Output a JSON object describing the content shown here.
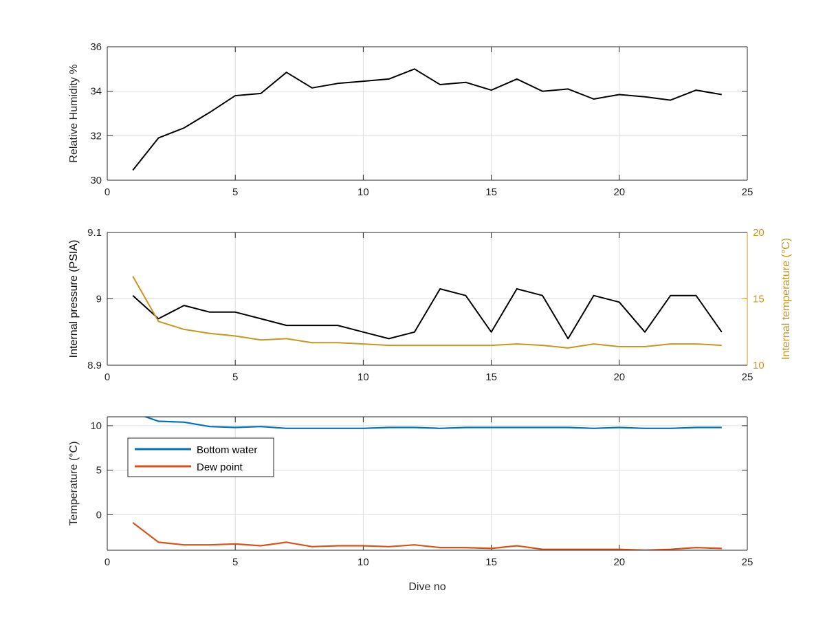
{
  "chart_data": [
    {
      "type": "line",
      "xlabel": "",
      "ylabel": "Relative Humidity %",
      "xlim": [
        0,
        25
      ],
      "ylim": [
        30,
        36
      ],
      "xticks": [
        "0",
        "5",
        "10",
        "15",
        "20",
        "25"
      ],
      "yticks": [
        "30",
        "32",
        "34",
        "36"
      ],
      "grid": true,
      "series": [
        {
          "color": "#000000",
          "x": [
            1,
            2,
            3,
            4,
            5,
            6,
            7,
            8,
            9,
            10,
            11,
            12,
            13,
            14,
            15,
            16,
            17,
            18,
            19,
            20,
            21,
            22,
            23,
            24
          ],
          "y": [
            30.45,
            31.9,
            32.35,
            33.05,
            33.8,
            33.9,
            34.85,
            34.15,
            34.35,
            34.45,
            34.55,
            35.0,
            34.3,
            34.4,
            34.05,
            34.55,
            34.0,
            34.1,
            33.65,
            33.85,
            33.75,
            33.6,
            34.05,
            33.85
          ]
        }
      ]
    },
    {
      "type": "line",
      "xlabel": "",
      "ylabel": "Internal pressure (PSIA)",
      "ylabel_right": "Internal temperature (°C)",
      "xlim": [
        0,
        25
      ],
      "ylim": [
        8.9,
        9.1
      ],
      "ylim_right": [
        10,
        20
      ],
      "xticks": [
        "0",
        "5",
        "10",
        "15",
        "20",
        "25"
      ],
      "yticks": [
        "8.9",
        "9",
        "9.1"
      ],
      "yticks_right": [
        "10",
        "15",
        "20"
      ],
      "grid": true,
      "right_axis_color": "#c8961e",
      "series": [
        {
          "axis": "left",
          "color": "#000000",
          "x": [
            1,
            2,
            3,
            4,
            5,
            6,
            7,
            8,
            9,
            10,
            11,
            12,
            13,
            14,
            15,
            16,
            17,
            18,
            19,
            20,
            21,
            22,
            23,
            24
          ],
          "y": [
            9.005,
            8.97,
            8.99,
            8.98,
            8.98,
            8.97,
            8.96,
            8.96,
            8.96,
            8.95,
            8.94,
            8.95,
            9.015,
            9.005,
            8.95,
            9.015,
            9.005,
            8.94,
            9.005,
            8.995,
            8.95,
            9.005,
            9.005,
            8.95
          ]
        },
        {
          "axis": "right",
          "color": "#c8961e",
          "x": [
            1,
            2,
            3,
            4,
            5,
            6,
            7,
            8,
            9,
            10,
            11,
            12,
            13,
            14,
            15,
            16,
            17,
            18,
            19,
            20,
            21,
            22,
            23,
            24
          ],
          "y": [
            16.7,
            13.3,
            12.7,
            12.4,
            12.2,
            11.9,
            12.0,
            11.7,
            11.7,
            11.6,
            11.5,
            11.5,
            11.5,
            11.5,
            11.5,
            11.6,
            11.5,
            11.3,
            11.6,
            11.4,
            11.4,
            11.6,
            11.6,
            11.5
          ]
        }
      ]
    },
    {
      "type": "line",
      "xlabel": "Dive no",
      "ylabel": "Temperature (°C)",
      "xlim": [
        0,
        25
      ],
      "ylim": [
        -4,
        11
      ],
      "xticks": [
        "0",
        "5",
        "10",
        "15",
        "20",
        "25"
      ],
      "yticks": [
        "0",
        "5",
        "10"
      ],
      "ytick_values": [
        0,
        5,
        10
      ],
      "grid": true,
      "legend": "top-left",
      "series": [
        {
          "name": "Bottom water",
          "color": "#0072bd",
          "x": [
            1,
            2,
            3,
            4,
            5,
            6,
            7,
            8,
            9,
            10,
            11,
            12,
            13,
            14,
            15,
            16,
            17,
            18,
            19,
            20,
            21,
            22,
            23,
            24
          ],
          "y": [
            11.5,
            10.5,
            10.4,
            9.9,
            9.8,
            9.9,
            9.7,
            9.7,
            9.7,
            9.7,
            9.8,
            9.8,
            9.7,
            9.8,
            9.8,
            9.8,
            9.8,
            9.8,
            9.7,
            9.8,
            9.7,
            9.7,
            9.8,
            9.8
          ]
        },
        {
          "name": "Dew point",
          "color": "#d95319",
          "x": [
            1,
            2,
            3,
            4,
            5,
            6,
            7,
            8,
            9,
            10,
            11,
            12,
            13,
            14,
            15,
            16,
            17,
            18,
            19,
            20,
            21,
            22,
            23,
            24
          ],
          "y": [
            -0.9,
            -3.1,
            -3.4,
            -3.4,
            -3.3,
            -3.5,
            -3.1,
            -3.6,
            -3.5,
            -3.5,
            -3.6,
            -3.4,
            -3.7,
            -3.7,
            -3.8,
            -3.5,
            -3.9,
            -3.9,
            -3.9,
            -3.9,
            -4.0,
            -3.9,
            -3.7,
            -3.8
          ]
        }
      ]
    }
  ]
}
